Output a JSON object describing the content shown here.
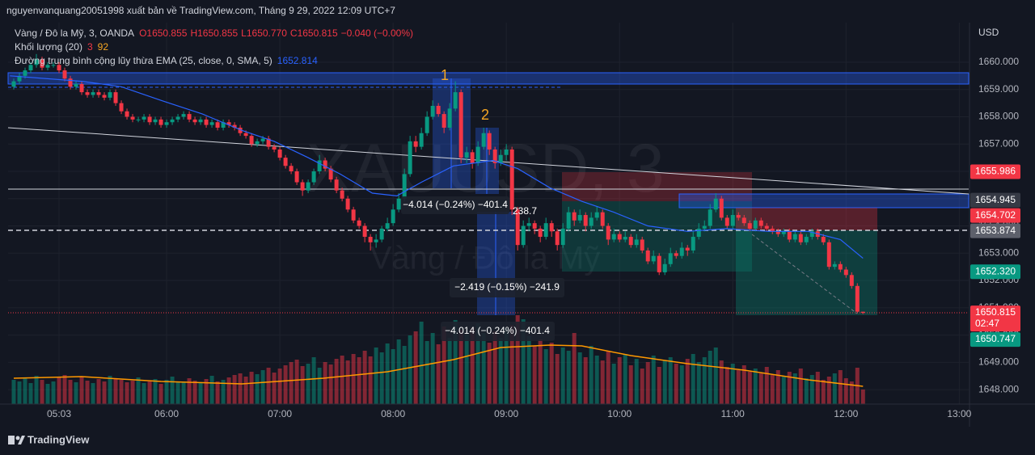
{
  "chart_data": {
    "type": "candlestick",
    "publisher_line": "nguyenvanquang20051998 xuất bản về TradingView.com, Tháng 9 29, 2022 12:09 UTC+7",
    "legend": {
      "symbol": "Vàng / Đô la Mỹ, 3, OANDA",
      "ohlc": [
        "O1650.855",
        "H1650.855",
        "L1650.770",
        "C1650.815"
      ],
      "change": "−0.040 (−0.00%)",
      "volume_name": "Khối lượng (20)",
      "volume_values": [
        "3",
        "92"
      ],
      "ema_name": "Đường trung bình cộng lũy thừa EMA (25, close, 0, SMA, 5)",
      "ema_value": "1652.814"
    },
    "watermark": {
      "symbol": "XAUUSD, 3",
      "description": "Vàng / Đô la Mỹ"
    },
    "annotations": [
      "1",
      "2",
      "−4.014 (−0.24%) −401.4",
      "238.7",
      "−2.419 (−0.15%) −241.9",
      "−4.014 (−0.24%) −401.4"
    ],
    "currency": "USD",
    "footer": "TradingView",
    "up_color": "#089981",
    "down_color": "#f23645",
    "volume_up_color": "rgba(8,153,129,0.5)",
    "volume_down_color": "rgba(242,54,69,0.5)",
    "ylim": [
      1647.47,
      1661.45
    ],
    "yticks": [
      {
        "value": 1648,
        "label": "1648.000"
      },
      {
        "value": 1649,
        "label": "1649.000"
      },
      {
        "value": 1650,
        "label": "1650.000"
      },
      {
        "value": 1651,
        "label": "1651.000"
      },
      {
        "value": 1652,
        "label": "1652.000"
      },
      {
        "value": 1653,
        "label": "1653.000"
      },
      {
        "value": 1654,
        "label": "1654.000"
      },
      {
        "value": 1655,
        "label": "1655.000"
      },
      {
        "value": 1656,
        "label": "1656.000"
      },
      {
        "value": 1657,
        "label": "1657.000"
      },
      {
        "value": 1658,
        "label": "1658.000"
      },
      {
        "value": 1659,
        "label": "1659.000"
      },
      {
        "value": 1660,
        "label": "1660.000"
      }
    ],
    "xlim": [
      276,
      785
    ],
    "xticks": [
      {
        "value": 303,
        "label": "05:03"
      },
      {
        "value": 360,
        "label": "06:00"
      },
      {
        "value": 420,
        "label": "07:00"
      },
      {
        "value": 480,
        "label": "08:00"
      },
      {
        "value": 540,
        "label": "09:00"
      },
      {
        "value": 600,
        "label": "10:00"
      },
      {
        "value": 660,
        "label": "11:00"
      },
      {
        "value": 720,
        "label": "12:00"
      },
      {
        "value": 780,
        "label": "13:00"
      }
    ],
    "grid": true,
    "vlim": [
      0,
      120
    ],
    "x": [
      279,
      282,
      285,
      288,
      291,
      294,
      297,
      300,
      303,
      306,
      309,
      312,
      315,
      318,
      321,
      324,
      327,
      330,
      333,
      336,
      339,
      342,
      345,
      348,
      351,
      354,
      357,
      360,
      363,
      366,
      369,
      372,
      375,
      378,
      381,
      384,
      387,
      390,
      393,
      396,
      399,
      402,
      405,
      408,
      411,
      414,
      417,
      420,
      423,
      426,
      429,
      432,
      435,
      438,
      441,
      444,
      447,
      450,
      453,
      456,
      459,
      462,
      465,
      468,
      471,
      474,
      477,
      480,
      483,
      486,
      489,
      492,
      495,
      498,
      501,
      504,
      507,
      510,
      513,
      516,
      519,
      522,
      525,
      528,
      531,
      534,
      537,
      540,
      543,
      546,
      549,
      552,
      555,
      558,
      561,
      564,
      567,
      570,
      573,
      576,
      579,
      582,
      585,
      588,
      591,
      594,
      597,
      600,
      603,
      606,
      609,
      612,
      615,
      618,
      621,
      624,
      627,
      630,
      633,
      636,
      639,
      642,
      645,
      648,
      651,
      654,
      657,
      660,
      663,
      666,
      669,
      672,
      675,
      678,
      681,
      684,
      687,
      690,
      693,
      696,
      699,
      702,
      705,
      708,
      711,
      714,
      717,
      720,
      723,
      726,
      729
    ],
    "candles": [
      [
        1659.1,
        1659.4,
        1659.0,
        1659.3
      ],
      [
        1659.3,
        1659.6,
        1659.2,
        1659.5
      ],
      [
        1659.5,
        1659.8,
        1659.4,
        1659.7
      ],
      [
        1659.7,
        1660.0,
        1659.6,
        1659.9
      ],
      [
        1659.9,
        1660.3,
        1659.8,
        1660.1
      ],
      [
        1660.1,
        1660.2,
        1659.7,
        1659.8
      ],
      [
        1659.8,
        1660.0,
        1659.7,
        1659.9
      ],
      [
        1659.9,
        1660.0,
        1659.8,
        1659.9
      ],
      [
        1659.9,
        1660.0,
        1659.6,
        1659.7
      ],
      [
        1659.7,
        1659.8,
        1659.3,
        1659.4
      ],
      [
        1659.4,
        1659.5,
        1659.0,
        1659.1
      ],
      [
        1659.1,
        1659.3,
        1659.0,
        1659.2
      ],
      [
        1659.2,
        1659.3,
        1658.8,
        1658.9
      ],
      [
        1658.9,
        1659.0,
        1658.7,
        1658.8
      ],
      [
        1658.8,
        1659.0,
        1658.7,
        1658.9
      ],
      [
        1658.9,
        1659.0,
        1658.7,
        1658.8
      ],
      [
        1658.8,
        1658.9,
        1658.6,
        1658.7
      ],
      [
        1658.7,
        1659.0,
        1658.6,
        1658.9
      ],
      [
        1658.9,
        1659.0,
        1658.4,
        1658.5
      ],
      [
        1658.5,
        1658.6,
        1658.1,
        1658.2
      ],
      [
        1658.2,
        1658.3,
        1657.9,
        1658.0
      ],
      [
        1658.0,
        1658.1,
        1657.8,
        1657.9
      ],
      [
        1657.9,
        1658.0,
        1657.8,
        1657.9
      ],
      [
        1657.9,
        1658.1,
        1657.8,
        1658.0
      ],
      [
        1658.0,
        1658.1,
        1657.7,
        1657.8
      ],
      [
        1657.8,
        1658.0,
        1657.7,
        1657.9
      ],
      [
        1657.9,
        1658.0,
        1657.6,
        1657.7
      ],
      [
        1657.7,
        1657.9,
        1657.6,
        1657.8
      ],
      [
        1657.8,
        1658.0,
        1657.7,
        1657.9
      ],
      [
        1657.9,
        1658.1,
        1657.8,
        1658.0
      ],
      [
        1658.0,
        1658.2,
        1657.9,
        1658.1
      ],
      [
        1658.1,
        1658.2,
        1657.8,
        1657.9
      ],
      [
        1657.9,
        1658.0,
        1657.7,
        1657.8
      ],
      [
        1657.8,
        1658.0,
        1657.7,
        1657.9
      ],
      [
        1657.9,
        1658.0,
        1657.6,
        1657.7
      ],
      [
        1657.7,
        1657.9,
        1657.6,
        1657.8
      ],
      [
        1657.8,
        1657.9,
        1657.5,
        1657.6
      ],
      [
        1657.6,
        1657.9,
        1657.5,
        1657.8
      ],
      [
        1657.8,
        1657.9,
        1657.6,
        1657.7
      ],
      [
        1657.7,
        1657.8,
        1657.5,
        1657.6
      ],
      [
        1657.6,
        1657.7,
        1657.3,
        1657.4
      ],
      [
        1657.4,
        1657.5,
        1657.2,
        1657.3
      ],
      [
        1657.3,
        1657.4,
        1656.9,
        1657.0
      ],
      [
        1657.0,
        1657.2,
        1656.9,
        1657.1
      ],
      [
        1657.1,
        1657.3,
        1657.0,
        1657.2
      ],
      [
        1657.2,
        1657.3,
        1656.8,
        1656.9
      ],
      [
        1656.9,
        1657.0,
        1656.7,
        1656.8
      ],
      [
        1656.8,
        1656.9,
        1656.4,
        1656.5
      ],
      [
        1656.5,
        1656.6,
        1656.1,
        1656.2
      ],
      [
        1656.2,
        1656.3,
        1655.9,
        1656.0
      ],
      [
        1656.0,
        1656.1,
        1655.5,
        1655.6
      ],
      [
        1655.6,
        1655.7,
        1655.1,
        1655.3
      ],
      [
        1655.3,
        1655.7,
        1655.2,
        1655.6
      ],
      [
        1655.6,
        1656.1,
        1655.5,
        1656.0
      ],
      [
        1656.0,
        1656.6,
        1655.9,
        1656.4
      ],
      [
        1656.4,
        1656.5,
        1656.0,
        1656.1
      ],
      [
        1656.1,
        1656.2,
        1655.6,
        1655.7
      ],
      [
        1655.7,
        1655.8,
        1655.2,
        1655.3
      ],
      [
        1655.3,
        1655.4,
        1654.9,
        1655.0
      ],
      [
        1655.0,
        1655.1,
        1654.5,
        1654.6
      ],
      [
        1654.6,
        1654.7,
        1654.1,
        1654.2
      ],
      [
        1654.2,
        1654.3,
        1653.9,
        1654.0
      ],
      [
        1654.0,
        1654.1,
        1653.4,
        1653.6
      ],
      [
        1653.6,
        1653.7,
        1653.1,
        1653.4
      ],
      [
        1653.4,
        1653.7,
        1653.2,
        1653.5
      ],
      [
        1653.5,
        1654.0,
        1653.4,
        1653.9
      ],
      [
        1653.9,
        1654.3,
        1653.8,
        1654.1
      ],
      [
        1654.1,
        1654.8,
        1654.0,
        1654.6
      ],
      [
        1654.6,
        1655.2,
        1654.5,
        1655.0
      ],
      [
        1655.0,
        1656.1,
        1654.9,
        1655.9
      ],
      [
        1655.9,
        1657.3,
        1655.8,
        1657.1
      ],
      [
        1657.1,
        1657.3,
        1656.7,
        1656.9
      ],
      [
        1656.9,
        1657.6,
        1656.8,
        1657.4
      ],
      [
        1657.4,
        1658.2,
        1657.3,
        1658.0
      ],
      [
        1658.0,
        1658.6,
        1657.9,
        1658.4
      ],
      [
        1658.4,
        1658.5,
        1658.0,
        1658.1
      ],
      [
        1658.1,
        1658.2,
        1657.4,
        1657.6
      ],
      [
        1657.6,
        1658.5,
        1657.5,
        1658.3
      ],
      [
        1658.3,
        1659.3,
        1658.2,
        1658.9
      ],
      [
        1658.9,
        1659.0,
        1656.3,
        1656.5
      ],
      [
        1656.5,
        1656.9,
        1656.3,
        1656.7
      ],
      [
        1656.7,
        1656.8,
        1656.1,
        1656.3
      ],
      [
        1656.3,
        1657.1,
        1656.2,
        1656.9
      ],
      [
        1656.9,
        1657.6,
        1656.8,
        1657.4
      ],
      [
        1657.4,
        1657.5,
        1656.6,
        1656.8
      ],
      [
        1656.8,
        1656.9,
        1656.1,
        1656.3
      ],
      [
        1656.3,
        1656.8,
        1656.2,
        1656.6
      ],
      [
        1656.6,
        1657.0,
        1656.4,
        1656.8
      ],
      [
        1656.8,
        1656.9,
        1654.4,
        1654.6
      ],
      [
        1654.6,
        1654.7,
        1653.1,
        1653.3
      ],
      [
        1653.3,
        1654.2,
        1653.2,
        1654.0
      ],
      [
        1654.0,
        1654.3,
        1653.8,
        1654.1
      ],
      [
        1654.1,
        1654.2,
        1653.7,
        1653.9
      ],
      [
        1653.9,
        1654.0,
        1653.4,
        1653.6
      ],
      [
        1653.6,
        1654.3,
        1653.5,
        1654.1
      ],
      [
        1654.1,
        1654.2,
        1653.6,
        1653.8
      ],
      [
        1653.8,
        1653.9,
        1653.1,
        1653.3
      ],
      [
        1653.3,
        1654.1,
        1653.2,
        1653.9
      ],
      [
        1653.9,
        1654.7,
        1653.8,
        1654.5
      ],
      [
        1654.5,
        1654.6,
        1654.0,
        1654.2
      ],
      [
        1654.2,
        1654.6,
        1654.1,
        1654.4
      ],
      [
        1654.4,
        1654.5,
        1653.8,
        1654.0
      ],
      [
        1654.0,
        1654.5,
        1653.9,
        1654.3
      ],
      [
        1654.3,
        1654.7,
        1654.2,
        1654.5
      ],
      [
        1654.5,
        1654.6,
        1653.9,
        1654.0
      ],
      [
        1654.0,
        1654.1,
        1653.3,
        1653.5
      ],
      [
        1653.5,
        1653.9,
        1653.4,
        1653.7
      ],
      [
        1653.7,
        1653.8,
        1653.4,
        1653.5
      ],
      [
        1653.5,
        1653.8,
        1653.4,
        1653.6
      ],
      [
        1653.6,
        1653.7,
        1653.2,
        1653.3
      ],
      [
        1653.3,
        1653.7,
        1653.2,
        1653.5
      ],
      [
        1653.5,
        1653.6,
        1653.0,
        1653.1
      ],
      [
        1653.1,
        1653.2,
        1652.6,
        1652.7
      ],
      [
        1652.7,
        1653.1,
        1652.6,
        1652.9
      ],
      [
        1652.9,
        1653.0,
        1652.2,
        1652.3
      ],
      [
        1652.3,
        1652.8,
        1652.2,
        1652.6
      ],
      [
        1652.6,
        1653.2,
        1652.5,
        1653.0
      ],
      [
        1653.0,
        1653.1,
        1652.8,
        1652.9
      ],
      [
        1652.9,
        1653.4,
        1652.8,
        1653.2
      ],
      [
        1653.2,
        1653.3,
        1652.9,
        1653.1
      ],
      [
        1653.1,
        1653.8,
        1653.0,
        1653.6
      ],
      [
        1653.6,
        1654.1,
        1653.5,
        1653.9
      ],
      [
        1653.9,
        1654.2,
        1653.8,
        1654.0
      ],
      [
        1654.0,
        1654.8,
        1653.9,
        1654.6
      ],
      [
        1654.6,
        1655.2,
        1654.5,
        1655.0
      ],
      [
        1655.0,
        1655.1,
        1654.2,
        1654.3
      ],
      [
        1654.3,
        1654.4,
        1653.9,
        1654.0
      ],
      [
        1654.0,
        1654.6,
        1653.9,
        1654.4
      ],
      [
        1654.4,
        1654.5,
        1654.2,
        1654.3
      ],
      [
        1654.3,
        1654.4,
        1654.0,
        1654.1
      ],
      [
        1654.1,
        1654.2,
        1653.8,
        1653.9
      ],
      [
        1653.9,
        1654.3,
        1653.8,
        1654.2
      ],
      [
        1654.2,
        1654.3,
        1653.9,
        1654.0
      ],
      [
        1654.0,
        1654.1,
        1653.8,
        1653.9
      ],
      [
        1653.9,
        1654.0,
        1653.7,
        1653.8
      ],
      [
        1653.8,
        1653.9,
        1653.6,
        1653.7
      ],
      [
        1653.7,
        1653.9,
        1653.6,
        1653.8
      ],
      [
        1653.8,
        1653.9,
        1653.4,
        1653.5
      ],
      [
        1653.5,
        1653.8,
        1653.4,
        1653.7
      ],
      [
        1653.7,
        1653.8,
        1653.3,
        1653.4
      ],
      [
        1653.4,
        1653.7,
        1653.3,
        1653.6
      ],
      [
        1653.6,
        1653.9,
        1653.5,
        1653.8
      ],
      [
        1653.8,
        1653.9,
        1653.5,
        1653.6
      ],
      [
        1653.6,
        1653.7,
        1653.3,
        1653.4
      ],
      [
        1653.4,
        1653.5,
        1652.4,
        1652.5
      ],
      [
        1652.5,
        1652.7,
        1652.4,
        1652.6
      ],
      [
        1652.6,
        1652.7,
        1652.3,
        1652.4
      ],
      [
        1652.4,
        1652.5,
        1652.1,
        1652.2
      ],
      [
        1652.2,
        1652.3,
        1651.7,
        1651.8
      ],
      [
        1651.8,
        1651.9,
        1650.8,
        1650.855
      ],
      [
        1650.855,
        1650.855,
        1650.77,
        1650.815
      ]
    ],
    "volume": [
      30,
      28,
      32,
      26,
      35,
      30,
      25,
      28,
      33,
      36,
      30,
      27,
      34,
      29,
      26,
      31,
      28,
      35,
      32,
      30,
      27,
      29,
      33,
      26,
      28,
      31,
      25,
      30,
      34,
      28,
      27,
      32,
      29,
      26,
      31,
      35,
      28,
      30,
      33,
      36,
      38,
      34,
      40,
      37,
      42,
      45,
      39,
      44,
      48,
      52,
      55,
      47,
      50,
      58,
      45,
      52,
      49,
      56,
      60,
      54,
      62,
      58,
      66,
      59,
      70,
      64,
      75,
      68,
      80,
      72,
      85,
      90,
      102,
      78,
      88,
      74,
      96,
      82,
      104,
      92,
      86,
      95,
      100,
      88,
      76,
      90,
      82,
      94,
      98,
      110,
      105,
      84,
      72,
      80,
      68,
      76,
      62,
      70,
      66,
      88,
      64,
      58,
      72,
      60,
      54,
      66,
      50,
      58,
      62,
      48,
      56,
      44,
      52,
      60,
      46,
      54,
      58,
      50,
      48,
      56,
      62,
      52,
      58,
      66,
      70,
      54,
      46,
      50,
      42,
      48,
      40,
      44,
      38,
      46,
      36,
      42,
      34,
      40,
      38,
      44,
      32,
      36,
      40,
      30,
      34,
      38,
      42,
      32,
      28,
      45,
      18
    ],
    "ema": {
      "color": "#2962ff",
      "x": [
        277,
        315,
        336,
        357,
        379,
        400,
        417,
        435,
        452,
        469,
        482,
        495,
        512,
        533,
        546,
        563,
        580,
        597,
        615,
        636,
        657,
        679,
        700,
        717,
        729
      ],
      "values": [
        1659.5,
        1659.3,
        1659.1,
        1658.6,
        1658.1,
        1657.5,
        1657.1,
        1656.5,
        1655.9,
        1655.2,
        1655.1,
        1655.6,
        1656.2,
        1656.4,
        1656.1,
        1655.4,
        1654.9,
        1654.5,
        1654.0,
        1653.8,
        1653.9,
        1653.8,
        1653.8,
        1653.5,
        1652.814
      ]
    },
    "volume_ma": {
      "color": "#ff9800",
      "x": [
        279,
        315,
        357,
        400,
        443,
        477,
        512,
        537,
        563,
        580,
        606,
        636,
        666,
        700,
        729
      ],
      "values": [
        32,
        34,
        28,
        25,
        32,
        40,
        55,
        70,
        73,
        72,
        60,
        50,
        42,
        30,
        22
      ]
    },
    "price_labels": [
      {
        "value": 1655.986,
        "color": "#f23645"
      },
      {
        "value": 1654.945,
        "color": "#363a45"
      },
      {
        "value": 1654.702,
        "color": "#f23645"
      },
      {
        "value": 1653.874,
        "color": "#5d606b"
      },
      {
        "value": 1652.32,
        "label": "1652.320",
        "color": "#089981"
      },
      {
        "value": 1650.815,
        "color": "#f23645",
        "countdown": "02:47"
      },
      {
        "value": 1650.747,
        "color": "#089981"
      }
    ]
  }
}
